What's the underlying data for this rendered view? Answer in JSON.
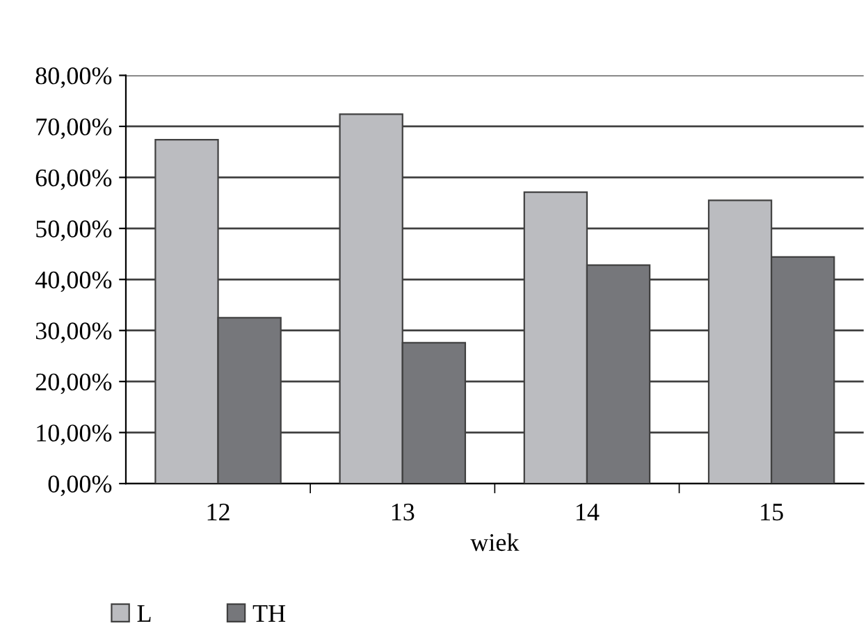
{
  "chart_data": {
    "type": "bar",
    "xlabel": "wiek",
    "categories": [
      "12",
      "13",
      "14",
      "15"
    ],
    "series": [
      {
        "name": "L",
        "color": "#bbbcc0",
        "values": [
          67.4,
          72.4,
          57.1,
          55.5
        ]
      },
      {
        "name": "TH",
        "color": "#76777b",
        "values": [
          32.5,
          27.6,
          42.8,
          44.4
        ]
      }
    ],
    "ylim": [
      0,
      80
    ],
    "yticks": [
      {
        "value": 0,
        "label": "0,00%"
      },
      {
        "value": 10,
        "label": "10,00%"
      },
      {
        "value": 20,
        "label": "20,00%"
      },
      {
        "value": 30,
        "label": "30,00%"
      },
      {
        "value": 40,
        "label": "40,00%"
      },
      {
        "value": 50,
        "label": "50,00%"
      },
      {
        "value": 60,
        "label": "60,00%"
      },
      {
        "value": 70,
        "label": "70,00%"
      },
      {
        "value": 80,
        "label": "80,00%"
      }
    ],
    "grid": "y",
    "legend": "bottom left"
  }
}
